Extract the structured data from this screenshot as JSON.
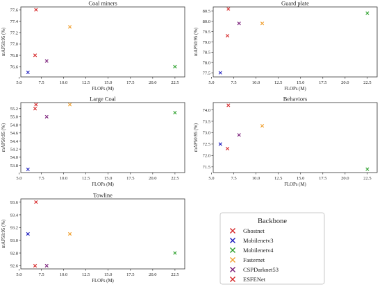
{
  "legend": {
    "title": "Backbone",
    "entries": [
      {
        "name": "Ghostnet",
        "color": "#d62728"
      },
      {
        "name": "Mobilenetv3",
        "color": "#1f1fbf"
      },
      {
        "name": "Mobilenetv4",
        "color": "#2ca02c"
      },
      {
        "name": "Fasternet",
        "color": "#f0a030"
      },
      {
        "name": "CSPDarknet53",
        "color": "#7a1f7a"
      },
      {
        "name": "ESFENet",
        "color": "#d62728"
      }
    ]
  },
  "chart_data": [
    {
      "type": "scatter",
      "title": "Coal miners",
      "xlabel": "FLOPs (M)",
      "ylabel": "mAP50:95 (%)",
      "xlim": [
        5.2,
        23.6
      ],
      "ylim": [
        76.42,
        77.65
      ],
      "xticks": [
        "5.0",
        "7.5",
        "10.0",
        "12.5",
        "15.0",
        "17.5",
        "20.0",
        "22.5"
      ],
      "yticks": [
        "76.6",
        "76.8",
        "77.0",
        "77.2",
        "77.4",
        "77.6"
      ],
      "points": [
        {
          "series": "Ghostnet",
          "x": 6.8,
          "y": 76.8
        },
        {
          "series": "Mobilenetv3",
          "x": 6.0,
          "y": 76.5
        },
        {
          "series": "Mobilenetv4",
          "x": 22.5,
          "y": 76.6
        },
        {
          "series": "Fasternet",
          "x": 10.7,
          "y": 77.3
        },
        {
          "series": "CSPDarknet53",
          "x": 8.1,
          "y": 76.7
        },
        {
          "series": "ESFENet",
          "x": 6.9,
          "y": 77.6
        }
      ]
    },
    {
      "type": "scatter",
      "title": "Guard plate",
      "xlabel": "FLOPs (M)",
      "ylabel": "mAP50:95 (%)",
      "xlim": [
        5.2,
        23.6
      ],
      "ylim": [
        77.3,
        80.7
      ],
      "xticks": [
        "5.0",
        "7.5",
        "10.0",
        "12.5",
        "15.0",
        "17.5",
        "20.0",
        "22.5"
      ],
      "yticks": [
        "77.5",
        "78.0",
        "78.5",
        "79.0",
        "79.5",
        "80.0",
        "80.5"
      ],
      "points": [
        {
          "series": "Ghostnet",
          "x": 6.8,
          "y": 79.3
        },
        {
          "series": "Mobilenetv3",
          "x": 6.0,
          "y": 77.5
        },
        {
          "series": "Mobilenetv4",
          "x": 22.5,
          "y": 80.4
        },
        {
          "series": "Fasternet",
          "x": 10.7,
          "y": 79.9
        },
        {
          "series": "CSPDarknet53",
          "x": 8.1,
          "y": 79.9
        },
        {
          "series": "ESFENet",
          "x": 6.9,
          "y": 80.6
        }
      ]
    },
    {
      "type": "scatter",
      "title": "Large Coal",
      "xlabel": "FLOPs (M)",
      "ylabel": "mAP50:95 (%)",
      "xlim": [
        5.2,
        23.6
      ],
      "ylim": [
        53.62,
        55.35
      ],
      "xticks": [
        "5.0",
        "7.5",
        "10.0",
        "12.5",
        "15.0",
        "17.5",
        "20.0",
        "22.5"
      ],
      "yticks": [
        "53.8",
        "54.0",
        "54.2",
        "54.4",
        "54.6",
        "54.8",
        "55.0",
        "55.2"
      ],
      "points": [
        {
          "series": "Ghostnet",
          "x": 6.8,
          "y": 55.2
        },
        {
          "series": "Mobilenetv3",
          "x": 6.0,
          "y": 53.7
        },
        {
          "series": "Mobilenetv4",
          "x": 22.5,
          "y": 55.1
        },
        {
          "series": "Fasternet",
          "x": 10.7,
          "y": 55.3
        },
        {
          "series": "CSPDarknet53",
          "x": 8.1,
          "y": 55.0
        },
        {
          "series": "ESFENet",
          "x": 6.9,
          "y": 55.3
        }
      ]
    },
    {
      "type": "scatter",
      "title": "Behaviors",
      "xlabel": "FLOPs (M)",
      "ylabel": "mAP50:95 (%)",
      "xlim": [
        5.2,
        23.6
      ],
      "ylim": [
        71.25,
        74.32
      ],
      "xticks": [
        "5.0",
        "7.5",
        "10.0",
        "12.5",
        "15.0",
        "17.5",
        "20.0",
        "22.5"
      ],
      "yticks": [
        "71.5",
        "72.0",
        "72.5",
        "73.0",
        "73.5",
        "74.0"
      ],
      "points": [
        {
          "series": "Ghostnet",
          "x": 6.8,
          "y": 72.3
        },
        {
          "series": "Mobilenetv3",
          "x": 6.0,
          "y": 72.5
        },
        {
          "series": "Mobilenetv4",
          "x": 22.5,
          "y": 71.4
        },
        {
          "series": "Fasternet",
          "x": 10.7,
          "y": 73.3
        },
        {
          "series": "CSPDarknet53",
          "x": 8.1,
          "y": 72.9
        },
        {
          "series": "ESFENet",
          "x": 6.9,
          "y": 74.2
        }
      ]
    },
    {
      "type": "scatter",
      "title": "Towline",
      "xlabel": "FLOPs (M)",
      "ylabel": "mAP50:95 (%)",
      "xlim": [
        5.2,
        23.6
      ],
      "ylim": [
        92.55,
        93.65
      ],
      "xticks": [
        "5.0",
        "7.5",
        "10.0",
        "12.5",
        "15.0",
        "17.5",
        "20.0",
        "22.5"
      ],
      "yticks": [
        "92.6",
        "92.8",
        "93.0",
        "93.2",
        "93.4",
        "93.6"
      ],
      "points": [
        {
          "series": "Ghostnet",
          "x": 6.8,
          "y": 92.6
        },
        {
          "series": "Mobilenetv3",
          "x": 6.0,
          "y": 93.1
        },
        {
          "series": "Mobilenetv4",
          "x": 22.5,
          "y": 92.8
        },
        {
          "series": "Fasternet",
          "x": 10.7,
          "y": 93.1
        },
        {
          "series": "CSPDarknet53",
          "x": 8.1,
          "y": 92.6
        },
        {
          "series": "ESFENet",
          "x": 6.9,
          "y": 93.6
        }
      ]
    }
  ]
}
